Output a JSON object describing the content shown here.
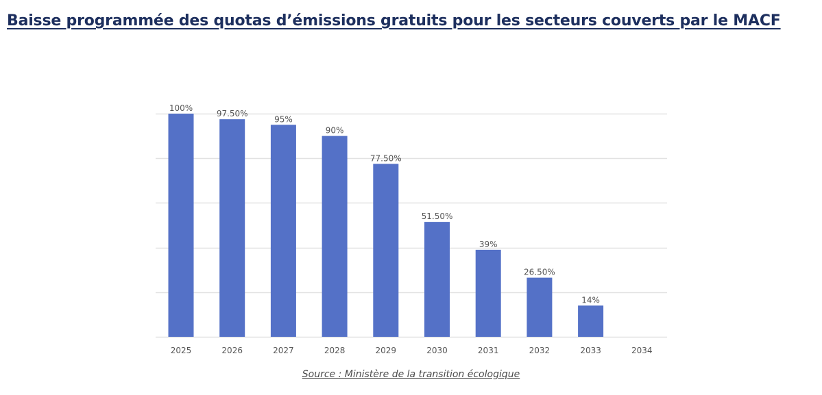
{
  "page": {
    "title": "Baisse programmée des quotas d’émissions gratuits pour les secteurs couverts par le MACF",
    "source": "Source : Ministère de la transition écologique"
  },
  "colors": {
    "title": "#1d2f5e",
    "bar": "#5471c7",
    "grid": "#e2e2e2",
    "tick_label": "#555555",
    "data_label": "#555555"
  },
  "chart_data": {
    "type": "bar",
    "title": "",
    "xlabel": "",
    "ylabel": "",
    "categories": [
      "2025",
      "2026",
      "2027",
      "2028",
      "2029",
      "2030",
      "2031",
      "2032",
      "2033",
      "2034"
    ],
    "values": [
      100,
      97.5,
      95,
      90,
      77.5,
      51.5,
      39,
      26.5,
      14,
      0
    ],
    "data_labels": [
      "100%",
      "97.50%",
      "95%",
      "90%",
      "77.50%",
      "51.50%",
      "39%",
      "26.50%",
      "14%",
      ""
    ],
    "ylim": [
      0,
      100
    ],
    "gridline_values": [
      0,
      20,
      40,
      60,
      80,
      100
    ],
    "grid": true,
    "y_axis_labels_visible": false,
    "legend": "none"
  }
}
